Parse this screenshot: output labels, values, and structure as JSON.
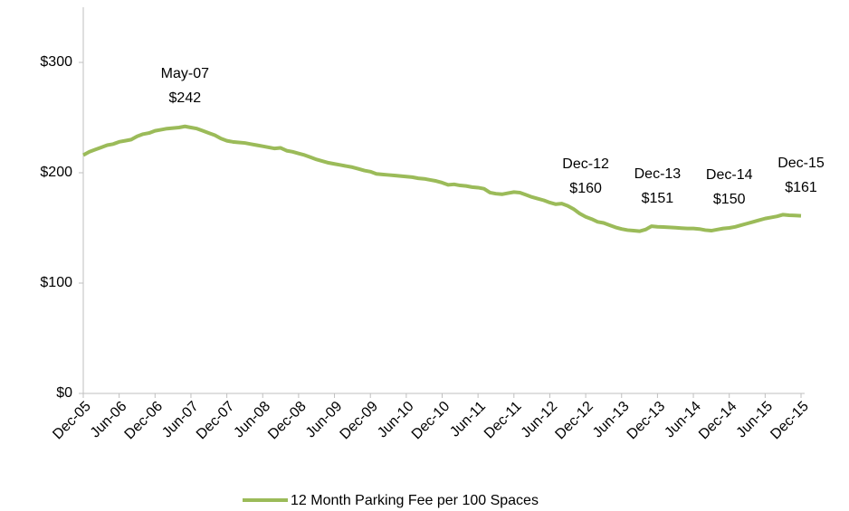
{
  "chart_data": {
    "type": "line",
    "categories": [
      "Dec-05",
      null,
      null,
      null,
      null,
      null,
      "Jun-06",
      null,
      null,
      null,
      null,
      null,
      "Dec-06",
      null,
      null,
      null,
      null,
      null,
      "Jun-07",
      null,
      null,
      null,
      null,
      null,
      "Dec-07",
      null,
      null,
      null,
      null,
      null,
      "Jun-08",
      null,
      null,
      null,
      null,
      null,
      "Dec-08",
      null,
      null,
      null,
      null,
      null,
      "Jun-09",
      null,
      null,
      null,
      null,
      null,
      "Dec-09",
      null,
      null,
      null,
      null,
      null,
      "Jun-10",
      null,
      null,
      null,
      null,
      null,
      "Dec-10",
      null,
      null,
      null,
      null,
      null,
      "Jun-11",
      null,
      null,
      null,
      null,
      null,
      "Dec-11",
      null,
      null,
      null,
      null,
      null,
      "Jun-12",
      null,
      null,
      null,
      null,
      null,
      "Dec-12",
      null,
      null,
      null,
      null,
      null,
      "Jun-13",
      null,
      null,
      null,
      null,
      null,
      "Dec-13",
      null,
      null,
      null,
      null,
      null,
      "Jun-14",
      null,
      null,
      null,
      null,
      null,
      "Dec-14",
      null,
      null,
      null,
      null,
      null,
      "Jun-15",
      null,
      null,
      null,
      null,
      null,
      "Dec-15"
    ],
    "series": [
      {
        "name": "12 Month Parking Fee per 100 Spaces",
        "color": "#9bbb59",
        "values": [
          216,
          219,
          221,
          223,
          225,
          226,
          228,
          229,
          230,
          233,
          235,
          236,
          238,
          239,
          240,
          240.5,
          241,
          242,
          241,
          240,
          238,
          236,
          234,
          231,
          229,
          228,
          227.5,
          227,
          226,
          225,
          224,
          223,
          222,
          222.5,
          220,
          219,
          217.5,
          216,
          214,
          212,
          210.5,
          209,
          208,
          207,
          206,
          205,
          203.5,
          202,
          201,
          199,
          198.5,
          198,
          197.5,
          197,
          196.5,
          196,
          195,
          194.5,
          193.5,
          192.5,
          191,
          189,
          189.5,
          188.5,
          188,
          187,
          186.5,
          185.5,
          182,
          181,
          180.5,
          181.5,
          182.5,
          182,
          180,
          178,
          176.5,
          175,
          173,
          171.5,
          172,
          170,
          167,
          163,
          160,
          158,
          155.5,
          154.5,
          152.5,
          150.5,
          149,
          148,
          147.5,
          147,
          148.5,
          151.5,
          151,
          150.8,
          150.5,
          150.2,
          149.8,
          149.5,
          149.5,
          149,
          148,
          147.5,
          148.5,
          149.5,
          150,
          151,
          152.5,
          154,
          155.5,
          157,
          158.5,
          159.5,
          160.5,
          162,
          161.5,
          161.3,
          161
        ]
      }
    ],
    "ylim": [
      0,
      350
    ],
    "yticks": [
      {
        "value": 0,
        "label": "$0"
      },
      {
        "value": 100,
        "label": "$100"
      },
      {
        "value": 200,
        "label": "$200"
      },
      {
        "value": 300,
        "label": "$300"
      }
    ],
    "annotations": [
      {
        "label": "May-07",
        "value": 242,
        "value_label": "$242"
      },
      {
        "label": "Dec-12",
        "value": 160,
        "value_label": "$160"
      },
      {
        "label": "Dec-13",
        "value": 151,
        "value_label": "$151"
      },
      {
        "label": "Dec-14",
        "value": 150,
        "value_label": "$150"
      },
      {
        "label": "Dec-15",
        "value": 161,
        "value_label": "$161"
      }
    ],
    "legend": "bottom"
  }
}
